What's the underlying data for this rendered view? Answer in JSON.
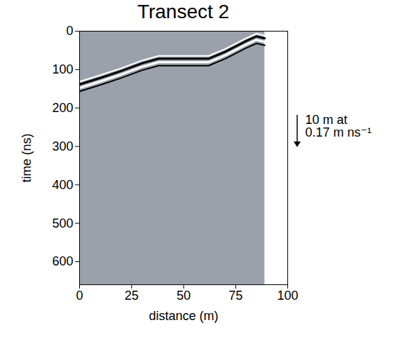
{
  "chart_data": {
    "type": "radargram",
    "title": "Transect 2",
    "x_label": "distance (m)",
    "y_label": "time (ns)",
    "xlim": [
      0,
      100
    ],
    "ylim": [
      0,
      660
    ],
    "xticks": [
      0,
      25,
      50,
      75,
      100
    ],
    "yticks": [
      0,
      100,
      200,
      300,
      400,
      500,
      600
    ],
    "color": "#9aa1aa",
    "image_extent": {
      "x": [
        0,
        89
      ],
      "y": [
        0,
        660
      ]
    },
    "series": [
      {
        "color": "#000000",
        "x": [
          0,
          10,
          20,
          30,
          38,
          50,
          62,
          70,
          80,
          85,
          89
        ],
        "values": [
          135,
          118,
          100,
          80,
          68,
          68,
          68,
          50,
          22,
          10,
          15
        ]
      }
    ],
    "annotation": {
      "text": [
        "10 m at",
        "0.17 m ns⁻¹"
      ]
    }
  }
}
